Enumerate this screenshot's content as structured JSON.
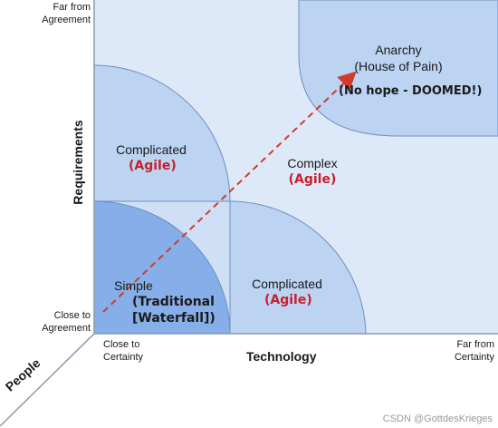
{
  "axes": {
    "y_label": "Requirements",
    "y_top": [
      "Far from",
      "Agreement"
    ],
    "y_bottom": [
      "Close to",
      "Agreement"
    ],
    "x_label": "Technology",
    "x_left": [
      "Close to",
      "Certainty"
    ],
    "x_right": [
      "Far from",
      "Certainty"
    ],
    "z_label": "People"
  },
  "zones": {
    "anarchy": {
      "title": "Anarchy",
      "subtitle": "(House of Pain)",
      "note": "(No hope - DOOMED!)"
    },
    "complex": {
      "title": "Complex",
      "note": "(Agile)"
    },
    "complicated_top": {
      "title": "Complicated",
      "note": "(Agile)"
    },
    "complicated_right": {
      "title": "Complicated",
      "note": "(Agile)"
    },
    "simple": {
      "title": "Simple",
      "note_line1": "(Traditional",
      "note_line2": "[Waterfall])"
    }
  },
  "watermark": "CSDN @GottdesKrieges",
  "colors": {
    "fill_light": "#dde9f9",
    "fill_mid": "#bcd3f2",
    "fill_dark": "#86aee8",
    "stroke": "#6f8fc0",
    "arrow": "#d23a2e",
    "annotation": "#c8202a"
  }
}
